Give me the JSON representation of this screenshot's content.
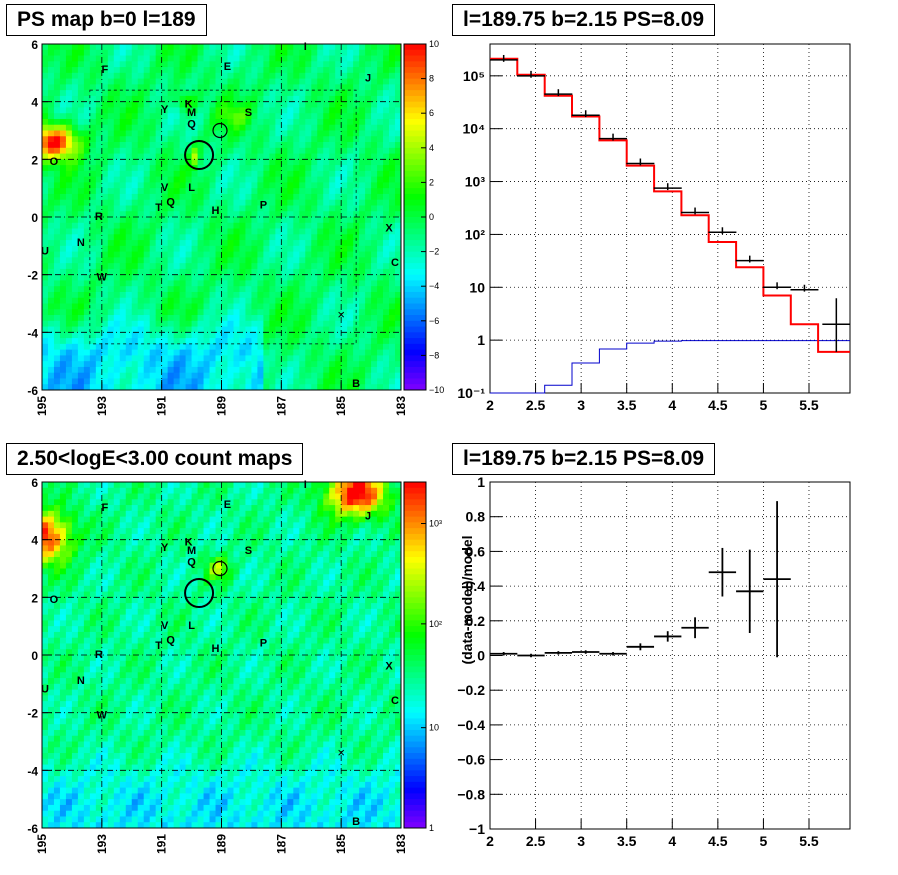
{
  "panels": {
    "map1_title": "PS map b=0 l=189",
    "spec_title": "l=189.75 b=2.15 PS=8.09",
    "map2_title": "2.50<logE<3.00 count maps",
    "ratio_title": "l=189.75 b=2.15 PS=8.09"
  },
  "colors": {
    "data": "#000000",
    "model": "#ff0000",
    "background": "#0000cc"
  },
  "chart_data": [
    {
      "type": "heatmap",
      "title": "PS map b=0 l=189",
      "x_ticks": [
        "195",
        "193",
        "191",
        "189",
        "187",
        "185",
        "183"
      ],
      "y_ticks": [
        "6",
        "4",
        "2",
        "0",
        "-2",
        "-4",
        "-6"
      ],
      "xlim": [
        195,
        183
      ],
      "ylim": [
        -6,
        6
      ],
      "colorbar_ticks": [
        "10",
        "8",
        "6",
        "4",
        "2",
        "0",
        "−2",
        "−4",
        "−6",
        "−8",
        "−10"
      ],
      "colorbar_range": [
        -10,
        10
      ],
      "source_labels": [
        {
          "label": "I",
          "l": 186.2,
          "b": 5.8
        },
        {
          "label": "F",
          "l": 192.9,
          "b": 5.0
        },
        {
          "label": "E",
          "l": 188.8,
          "b": 5.1
        },
        {
          "label": "J",
          "l": 184.1,
          "b": 4.7
        },
        {
          "label": "K",
          "l": 190.1,
          "b": 3.8
        },
        {
          "label": "Y",
          "l": 190.9,
          "b": 3.6
        },
        {
          "label": "M",
          "l": 190.0,
          "b": 3.5
        },
        {
          "label": "S",
          "l": 188.1,
          "b": 3.5
        },
        {
          "label": "Q",
          "l": 190.0,
          "b": 3.1
        },
        {
          "label": "O",
          "l": 194.6,
          "b": 1.8
        },
        {
          "label": "V",
          "l": 190.9,
          "b": 0.9
        },
        {
          "label": "L",
          "l": 190.0,
          "b": 0.9
        },
        {
          "label": "T",
          "l": 191.1,
          "b": 0.2
        },
        {
          "label": "Q",
          "l": 190.7,
          "b": 0.4
        },
        {
          "label": "H",
          "l": 189.2,
          "b": 0.1
        },
        {
          "label": "P",
          "l": 187.6,
          "b": 0.3
        },
        {
          "label": "R",
          "l": 193.1,
          "b": -0.1
        },
        {
          "label": "X",
          "l": 183.4,
          "b": -0.5
        },
        {
          "label": "N",
          "l": 193.7,
          "b": -1.0
        },
        {
          "label": "U",
          "l": 194.9,
          "b": -1.3
        },
        {
          "label": "C",
          "l": 183.2,
          "b": -1.7
        },
        {
          "label": "W",
          "l": 193.0,
          "b": -2.2
        },
        {
          "label": "B",
          "l": 184.5,
          "b": -5.9
        }
      ]
    },
    {
      "type": "line",
      "title": "l=189.75 b=2.15 PS=8.09",
      "x_ticks": [
        "2",
        "2.5",
        "3",
        "3.5",
        "4",
        "4.5",
        "5",
        "5.5"
      ],
      "y_ticks": [
        "10⁵",
        "10⁴",
        "10³",
        "10²",
        "10",
        "1",
        "10⁻¹"
      ],
      "xlim": [
        2,
        5.95
      ],
      "ylim": [
        0.1,
        400000
      ],
      "log_y": true,
      "grid": true,
      "series": [
        {
          "role": "data",
          "points": [
            [
              2.15,
              200000
            ],
            [
              2.45,
              100000
            ],
            [
              2.75,
              45000
            ],
            [
              3.05,
              18000
            ],
            [
              3.35,
              6500
            ],
            [
              3.65,
              2200
            ],
            [
              3.95,
              750
            ],
            [
              4.25,
              260
            ],
            [
              4.55,
              110
            ],
            [
              4.85,
              32
            ],
            [
              5.15,
              10
            ],
            [
              5.45,
              9
            ],
            [
              5.8,
              2
            ]
          ]
        },
        {
          "role": "model",
          "edges": [
            2,
            2.3,
            2.6,
            2.9,
            3.2,
            3.5,
            3.8,
            4.1,
            4.4,
            4.7,
            5,
            5.3,
            5.6,
            5.95
          ],
          "values": [
            210000,
            105000,
            42000,
            17000,
            6000,
            2000,
            650,
            230,
            72,
            24,
            7,
            2,
            0.6
          ]
        },
        {
          "role": "background",
          "edges": [
            2,
            2.3,
            2.6,
            2.9,
            3.2,
            3.5,
            3.8,
            4.1,
            4.4,
            4.7,
            5,
            5.3,
            5.6,
            5.95
          ],
          "values": [
            0.05,
            0.08,
            0.14,
            0.37,
            0.68,
            0.88,
            0.96,
            0.98,
            0.98,
            0.98,
            0.98,
            0.98,
            0.98
          ]
        }
      ]
    },
    {
      "type": "heatmap",
      "title": "2.50<logE<3.00 count maps",
      "x_ticks": [
        "195",
        "193",
        "191",
        "189",
        "187",
        "185",
        "183"
      ],
      "y_ticks": [
        "6",
        "4",
        "2",
        "0",
        "-2",
        "-4",
        "-6"
      ],
      "xlim": [
        195,
        183
      ],
      "ylim": [
        -6,
        6
      ],
      "log_z": true,
      "colorbar_ticks": [
        "10³",
        "10²",
        "10",
        "1"
      ],
      "colorbar_range": [
        1,
        3000
      ]
    },
    {
      "type": "scatter",
      "title": "l=189.75 b=2.15 PS=8.09",
      "ylabel": "(data-model)/model",
      "x_ticks": [
        "2",
        "2.5",
        "3",
        "3.5",
        "4",
        "4.5",
        "5",
        "5.5"
      ],
      "y_ticks": [
        "1",
        "0.8",
        "0.6",
        "0.4",
        "0.2",
        "0",
        "−0.2",
        "−0.4",
        "−0.6",
        "−0.8",
        "−1"
      ],
      "xlim": [
        2,
        5.95
      ],
      "ylim": [
        -1,
        1
      ],
      "grid": true,
      "points": [
        {
          "x": 2.15,
          "y": 0.01,
          "xerr": 0.15,
          "yerr": 0.01
        },
        {
          "x": 2.45,
          "y": 0.0,
          "xerr": 0.15,
          "yerr": 0.01
        },
        {
          "x": 2.75,
          "y": 0.015,
          "xerr": 0.15,
          "yerr": 0.01
        },
        {
          "x": 3.05,
          "y": 0.02,
          "xerr": 0.15,
          "yerr": 0.01
        },
        {
          "x": 3.35,
          "y": 0.01,
          "xerr": 0.15,
          "yerr": 0.01
        },
        {
          "x": 3.65,
          "y": 0.05,
          "xerr": 0.15,
          "yerr": 0.02
        },
        {
          "x": 3.95,
          "y": 0.11,
          "xerr": 0.15,
          "yerr": 0.03
        },
        {
          "x": 4.25,
          "y": 0.16,
          "xerr": 0.15,
          "yerr": 0.06
        },
        {
          "x": 4.55,
          "y": 0.48,
          "xerr": 0.15,
          "yerr": 0.14
        },
        {
          "x": 4.85,
          "y": 0.37,
          "xerr": 0.15,
          "yerr": 0.24
        },
        {
          "x": 5.15,
          "y": 0.44,
          "xerr": 0.15,
          "yerr": 0.45
        }
      ]
    }
  ]
}
